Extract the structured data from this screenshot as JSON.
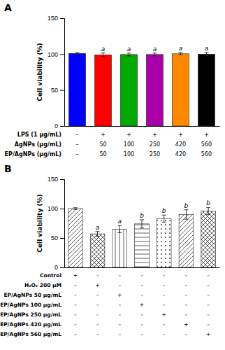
{
  "chart_data": [
    {
      "type": "bar",
      "title": "A",
      "categories": [
        null,
        null,
        null,
        null,
        null,
        null
      ],
      "values": [
        101,
        99,
        99.5,
        99.5,
        100.5,
        100
      ],
      "errors": [
        1.0,
        2.5,
        2.0,
        2.0,
        1.5,
        2.0
      ],
      "colors": [
        "#0000FF",
        "#FF0000",
        "#00AA00",
        "#AA00AA",
        "#FF8800",
        "#000000"
      ],
      "annotations": [
        null,
        "a",
        "a",
        "a",
        "a",
        "a"
      ],
      "y_label": "Cell viability (%)",
      "ylim": [
        0,
        150
      ],
      "yticks": [
        0,
        50,
        100,
        150
      ],
      "table_rows": [
        [
          "LPS (1 μg/mL)",
          "–",
          "+",
          "+",
          "+",
          "+",
          "+"
        ],
        [
          "AgNPs (μg/mL)",
          "–",
          "50",
          "100",
          "250",
          "420",
          "560"
        ],
        [
          "EP/AgNPs (μg/mL)",
          "–",
          "50",
          "100",
          "250",
          "420",
          "560"
        ]
      ]
    },
    {
      "type": "bar",
      "title": "B",
      "categories": [
        null,
        null,
        null,
        null,
        null,
        null,
        null
      ],
      "values": [
        100,
        57,
        65,
        74,
        83,
        90,
        96
      ],
      "errors": [
        1.5,
        4.0,
        6.0,
        7.0,
        6.0,
        8.0,
        6.0
      ],
      "annotations": [
        null,
        "a",
        "a",
        "b",
        "b",
        "b",
        "b"
      ],
      "y_label": "Cell viability (%)",
      "ylim": [
        0,
        150
      ],
      "yticks": [
        0,
        50,
        100,
        150
      ],
      "table_rows": [
        [
          "Control",
          "+",
          "–",
          "–",
          "–",
          "–",
          "–",
          "–"
        ],
        [
          "H₂O₂ 200 μM",
          "–",
          "+",
          "–",
          "–",
          "–",
          "–",
          "–"
        ],
        [
          "EP/AgNPs 50 μg/mL",
          "–",
          "–",
          "+",
          "–",
          "–",
          "–",
          "–"
        ],
        [
          "EP/AgNPs 100 μg/mL",
          "–",
          "–",
          "–",
          "+",
          "–",
          "–",
          "–"
        ],
        [
          "EP/AgNPs 250 μg/mL",
          "–",
          "–",
          "–",
          "–",
          "+",
          "–",
          "–"
        ],
        [
          "EP/AgNPs 420 μg/mL",
          "–",
          "–",
          "–",
          "–",
          "–",
          "+",
          "–"
        ],
        [
          "EP/AgNPs 560 μg/mL",
          "–",
          "–",
          "–",
          "–",
          "–",
          "–",
          "+"
        ]
      ]
    }
  ]
}
